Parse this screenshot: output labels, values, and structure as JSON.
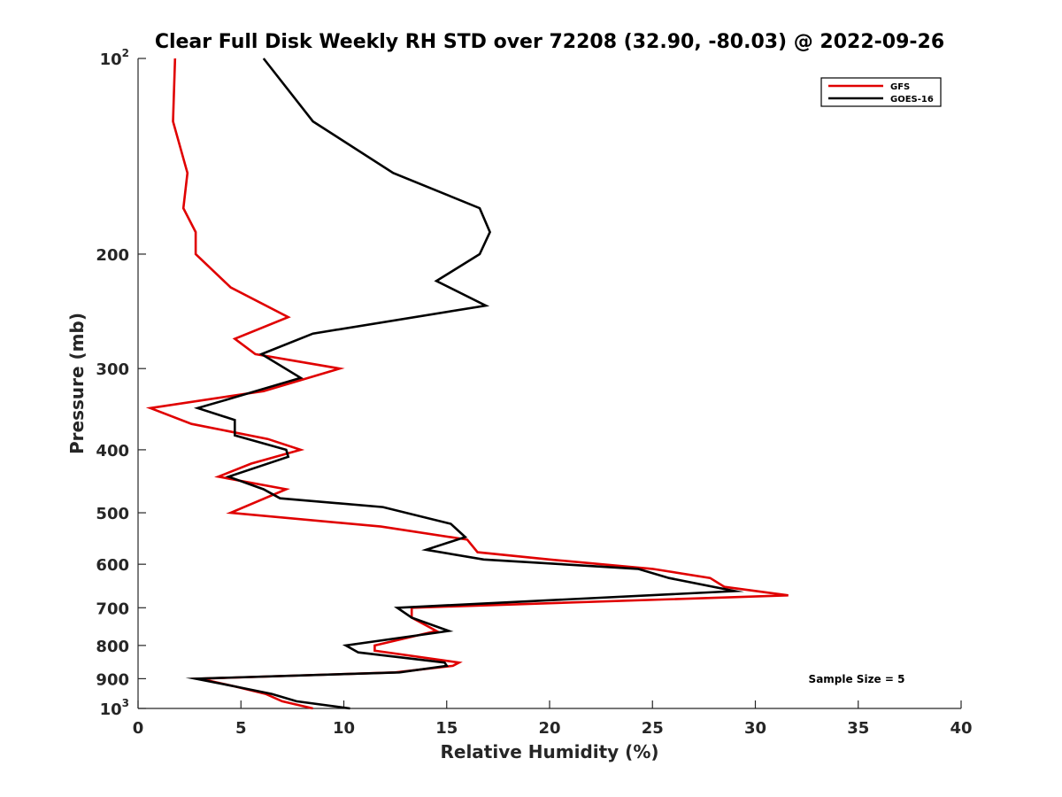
{
  "chart_data": {
    "type": "line",
    "title": "Clear Full Disk Weekly RH STD over 72208 (32.90, -80.03) @ 2022-09-26",
    "xlabel": "Relative Humidity (%)",
    "ylabel": "Pressure (mb)",
    "xlim": [
      0,
      40
    ],
    "ylim": [
      100,
      1000
    ],
    "y_scale": "log",
    "y_reversed": true,
    "x_ticks": [
      0,
      5,
      10,
      15,
      20,
      25,
      30,
      35,
      40
    ],
    "x_tick_labels": [
      "0",
      "5",
      "10",
      "15",
      "20",
      "25",
      "30",
      "35",
      "40"
    ],
    "y_ticks": [
      {
        "value": 100,
        "label": "10",
        "sup": "2"
      },
      {
        "value": 200,
        "label": "200",
        "sup": ""
      },
      {
        "value": 300,
        "label": "300",
        "sup": ""
      },
      {
        "value": 400,
        "label": "400",
        "sup": ""
      },
      {
        "value": 500,
        "label": "500",
        "sup": ""
      },
      {
        "value": 600,
        "label": "600",
        "sup": ""
      },
      {
        "value": 700,
        "label": "700",
        "sup": ""
      },
      {
        "value": 800,
        "label": "800",
        "sup": ""
      },
      {
        "value": 900,
        "label": "900",
        "sup": ""
      },
      {
        "value": 1000,
        "label": "10",
        "sup": "3"
      }
    ],
    "grid": false,
    "legend_position": "top-right",
    "annotation": "Sample Size = 5",
    "series": [
      {
        "name": "GFS",
        "color": "#e00000",
        "points": [
          [
            1.8,
            100
          ],
          [
            1.7,
            125
          ],
          [
            2.4,
            150
          ],
          [
            2.2,
            170
          ],
          [
            2.8,
            185
          ],
          [
            2.8,
            200
          ],
          [
            4.5,
            225
          ],
          [
            7.3,
            250
          ],
          [
            4.7,
            270
          ],
          [
            5.7,
            285
          ],
          [
            9.8,
            300
          ],
          [
            6.1,
            325
          ],
          [
            0.6,
            345
          ],
          [
            2.6,
            365
          ],
          [
            6.3,
            385
          ],
          [
            7.9,
            400
          ],
          [
            5.5,
            420
          ],
          [
            3.9,
            440
          ],
          [
            7.2,
            460
          ],
          [
            4.5,
            500
          ],
          [
            11.8,
            525
          ],
          [
            16.0,
            550
          ],
          [
            16.5,
            575
          ],
          [
            20.0,
            590
          ],
          [
            25.0,
            610
          ],
          [
            27.8,
            630
          ],
          [
            28.5,
            650
          ],
          [
            31.6,
            670
          ],
          [
            13.3,
            700
          ],
          [
            13.3,
            725
          ],
          [
            14.5,
            760
          ],
          [
            11.5,
            800
          ],
          [
            11.5,
            815
          ],
          [
            15.6,
            850
          ],
          [
            15.3,
            860
          ],
          [
            12.5,
            880
          ],
          [
            3.0,
            900
          ],
          [
            4.7,
            925
          ],
          [
            6.2,
            950
          ],
          [
            7.0,
            975
          ],
          [
            8.5,
            1000
          ]
        ]
      },
      {
        "name": "GOES-16",
        "color": "#000000",
        "points": [
          [
            6.1,
            100
          ],
          [
            8.5,
            125
          ],
          [
            12.4,
            150
          ],
          [
            16.6,
            170
          ],
          [
            17.1,
            185
          ],
          [
            16.6,
            200
          ],
          [
            14.5,
            220
          ],
          [
            16.9,
            240
          ],
          [
            8.5,
            265
          ],
          [
            6.0,
            285
          ],
          [
            7.9,
            310
          ],
          [
            4.3,
            335
          ],
          [
            2.9,
            345
          ],
          [
            4.7,
            360
          ],
          [
            4.7,
            380
          ],
          [
            7.2,
            400
          ],
          [
            7.3,
            410
          ],
          [
            4.4,
            440
          ],
          [
            6.1,
            460
          ],
          [
            6.9,
            475
          ],
          [
            11.9,
            490
          ],
          [
            15.2,
            520
          ],
          [
            15.9,
            545
          ],
          [
            14.0,
            570
          ],
          [
            16.8,
            590
          ],
          [
            24.3,
            610
          ],
          [
            25.8,
            630
          ],
          [
            29.0,
            660
          ],
          [
            12.6,
            700
          ],
          [
            13.3,
            725
          ],
          [
            15.1,
            760
          ],
          [
            10.1,
            800
          ],
          [
            10.7,
            820
          ],
          [
            14.9,
            850
          ],
          [
            15.0,
            860
          ],
          [
            12.7,
            880
          ],
          [
            2.8,
            900
          ],
          [
            4.7,
            925
          ],
          [
            6.5,
            950
          ],
          [
            7.7,
            975
          ],
          [
            10.3,
            1000
          ]
        ]
      }
    ]
  }
}
